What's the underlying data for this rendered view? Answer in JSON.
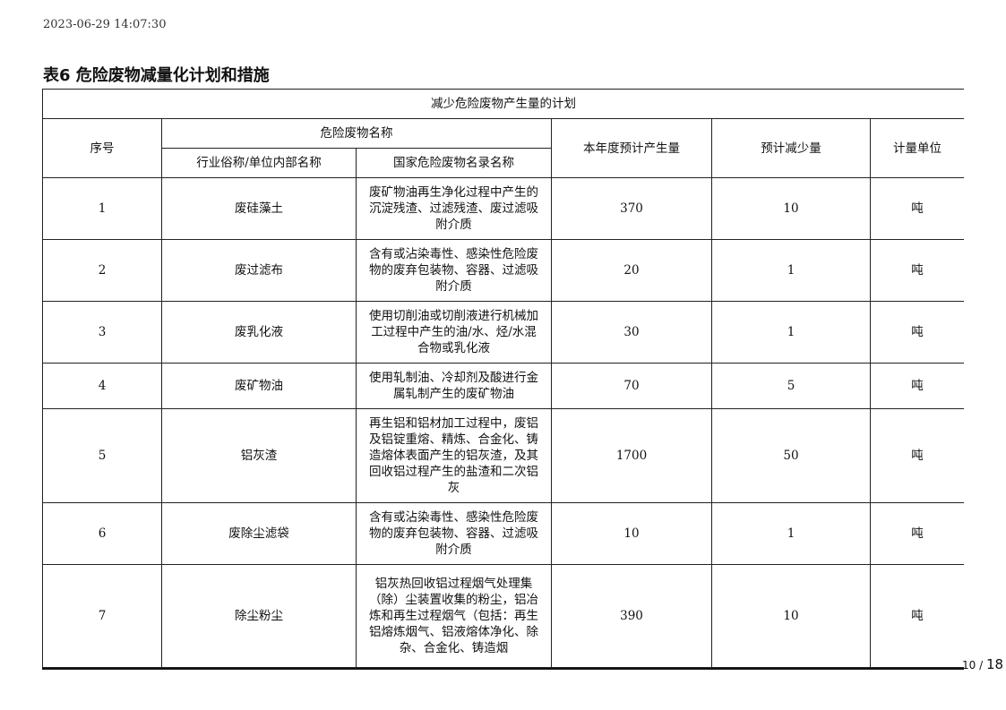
{
  "timestamp": "2023-06-29 14:07:30",
  "title": "表6 危险废物减量化计划和措施",
  "table": {
    "caption": "减少危险废物产生量的计划",
    "headers": {
      "no": "序号",
      "name_group": "危险废物名称",
      "industry_name": "行业俗称/单位内部名称",
      "national_name": "国家危险废物名录名称",
      "annual": "本年度预计产生量",
      "reduction": "预计减少量",
      "unit": "计量单位"
    },
    "rows": [
      {
        "no": "1",
        "name": "废硅藻土",
        "desc": "废矿物油再生净化过程中产生的沉淀残渣、过滤残渣、废过滤吸附介质",
        "annual": "370",
        "reduction": "10",
        "unit": "吨"
      },
      {
        "no": "2",
        "name": "废过滤布",
        "desc": "含有或沾染毒性、感染性危险废物的废弃包装物、容器、过滤吸附介质",
        "annual": "20",
        "reduction": "1",
        "unit": "吨"
      },
      {
        "no": "3",
        "name": "废乳化液",
        "desc": "使用切削油或切削液进行机械加工过程中产生的油/水、烃/水混合物或乳化液",
        "annual": "30",
        "reduction": "1",
        "unit": "吨"
      },
      {
        "no": "4",
        "name": "废矿物油",
        "desc": "使用轧制油、冷却剂及酸进行金属轧制产生的废矿物油",
        "annual": "70",
        "reduction": "5",
        "unit": "吨"
      },
      {
        "no": "5",
        "name": "铝灰渣",
        "desc": "再生铝和铝材加工过程中，废铝及铝锭重熔、精炼、合金化、铸造熔体表面产生的铝灰渣，及其回收铝过程产生的盐渣和二次铝灰",
        "annual": "1700",
        "reduction": "50",
        "unit": "吨"
      },
      {
        "no": "6",
        "name": "废除尘滤袋",
        "desc": "含有或沾染毒性、感染性危险废物的废弃包装物、容器、过滤吸附介质",
        "annual": "10",
        "reduction": "1",
        "unit": "吨"
      },
      {
        "no": "7",
        "name": "除尘粉尘",
        "desc": "铝灰热回收铝过程烟气处理集（除）尘装置收集的粉尘，铝冶炼和再生过程烟气（包括：再生铝熔炼烟气、铝液熔体净化、除杂、合金化、铸造烟",
        "annual": "390",
        "reduction": "10",
        "unit": "吨"
      }
    ]
  },
  "pagination": {
    "current": "10",
    "separator": " / ",
    "total": "18"
  }
}
